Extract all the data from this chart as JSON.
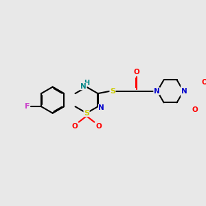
{
  "bg_color": "#e8e8e8",
  "bond_color": "#000000",
  "bond_width": 1.5,
  "figsize": [
    3.0,
    3.0
  ],
  "dpi": 100,
  "colors": {
    "N": "#0000cc",
    "O": "#ff0000",
    "S": "#cccc00",
    "F": "#cc44cc",
    "NH": "#008888",
    "C": "#000000"
  }
}
